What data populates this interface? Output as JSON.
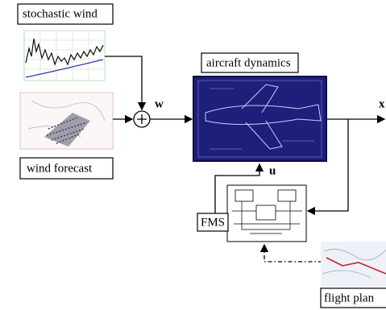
{
  "nodes": [
    {
      "label": "stochastic wind"
    },
    {
      "label": "wind forecast"
    },
    {
      "label": "aircraft dynamics"
    },
    {
      "label": "FMS"
    },
    {
      "label": "flight plan"
    }
  ],
  "edges": [
    {
      "label": "w"
    },
    {
      "label": "x"
    },
    {
      "label": "u"
    }
  ]
}
